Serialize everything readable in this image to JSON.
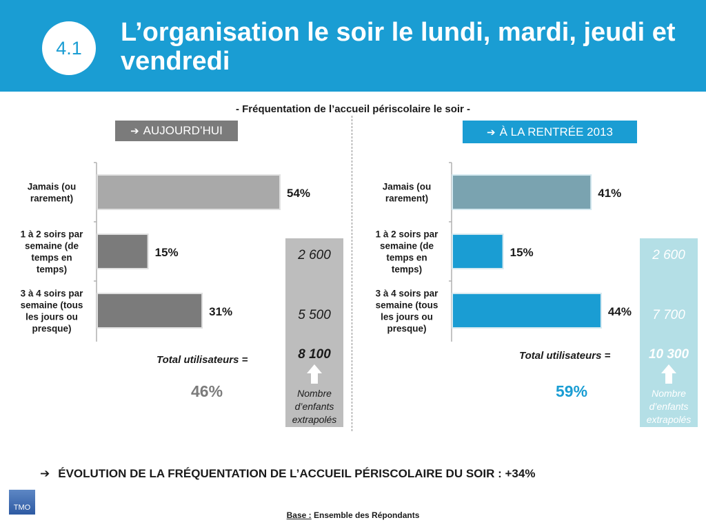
{
  "header": {
    "section_number": "4.1",
    "title": "L’organisation le soir le lundi, mardi, jeudi et vendredi"
  },
  "subtitle": "- Fréquentation de l’accueil périscolaire le soir -",
  "periods": {
    "today": "AUJOURD’HUI",
    "next": "À LA RENTRÉE 2013"
  },
  "extrapolation": {
    "today": {
      "values": [
        "2 600",
        "5 500"
      ],
      "total": "8 100"
    },
    "next": {
      "values": [
        "2 600",
        "7 700"
      ],
      "total": "10 300"
    },
    "caption": "Nombre d’enfants extrapolés"
  },
  "totals": {
    "label": "Total utilisateurs =",
    "today": "46%",
    "next": "59%"
  },
  "evolution": "ÉVOLUTION  DE LA FRÉQUENTATION DE L’ACCUEIL PÉRISCOLAIRE DU SOIR :  +34%",
  "base": {
    "key": "Base :",
    "text": "Ensemble des Répondants"
  },
  "logo": {
    "text": "TMO"
  },
  "icons": {
    "arrow": "right-arrow-icon",
    "extrap_arrow": "up-arrow-icon"
  },
  "colors": {
    "header": "#1a9dd3",
    "today_bar_1": "#a9a9a9",
    "today_bar_2": "#7b7b7b",
    "next_bar_1": "#7aa3b0",
    "next_bar_2": "#1a9dd3"
  },
  "chart_data": [
    {
      "type": "bar",
      "orientation": "horizontal",
      "title": "AUJOURD’HUI",
      "categories": [
        "Jamais (ou rarement)",
        "1 à 2 soirs par semaine (de temps en temps)",
        "3 à 4 soirs par semaine (tous les jours ou presque)"
      ],
      "values": [
        54,
        15,
        31
      ],
      "value_labels": [
        "54%",
        "15%",
        "31%"
      ],
      "xlim": [
        0,
        54
      ],
      "grid": false
    },
    {
      "type": "bar",
      "orientation": "horizontal",
      "title": "À LA RENTRÉE 2013",
      "categories": [
        "Jamais (ou rarement)",
        "1 à 2 soirs par semaine (de temps en temps)",
        "3 à 4 soirs par semaine (tous les jours ou presque)"
      ],
      "values": [
        41,
        15,
        44
      ],
      "value_labels": [
        "41%",
        "15%",
        "44%"
      ],
      "xlim": [
        0,
        54
      ],
      "grid": false
    }
  ]
}
